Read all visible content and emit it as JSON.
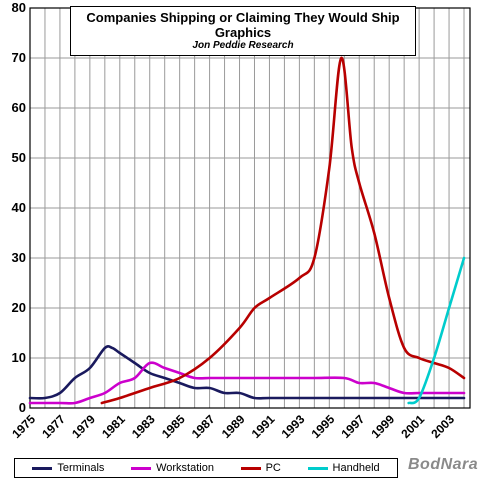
{
  "chart_data": {
    "type": "line",
    "title": "Companies  Shipping or Claiming They Would Ship Graphics",
    "subtitle": "Jon Peddie Research",
    "xlabel": "",
    "ylabel": "",
    "xlim": [
      1975,
      2004.4
    ],
    "ylim": [
      0,
      80
    ],
    "y_ticks": [
      0,
      10,
      20,
      30,
      40,
      50,
      60,
      70,
      80
    ],
    "x_tick_labels": [
      "1975",
      "1977",
      "1979",
      "1981",
      "1983",
      "1985",
      "1987",
      "1989",
      "1991",
      "1993",
      "1995",
      "1997",
      "1999",
      "2001",
      "2003"
    ],
    "grid": true,
    "legend_position": "bottom",
    "series": [
      {
        "name": "Terminals",
        "color": "#1a1a5e",
        "x": [
          1975,
          1976,
          1977,
          1978,
          1979,
          1980,
          1980.5,
          1981,
          1982,
          1983,
          1984,
          1985,
          1986,
          1987,
          1988,
          1989,
          1990,
          1991,
          1993,
          1995,
          1997,
          1999,
          2001,
          2003,
          2004
        ],
        "y": [
          2,
          2,
          3,
          6,
          8,
          12,
          12,
          11,
          9,
          7,
          6,
          5,
          4,
          4,
          3,
          3,
          2,
          2,
          2,
          2,
          2,
          2,
          2,
          2,
          2
        ]
      },
      {
        "name": "Workstation",
        "color": "#cc00cc",
        "x": [
          1975,
          1977,
          1978,
          1979,
          1980,
          1981,
          1982,
          1983,
          1984,
          1985,
          1986,
          1987,
          1988,
          1990,
          1992,
          1994,
          1996,
          1997,
          1998,
          1999,
          2000,
          2001,
          2002,
          2003,
          2004
        ],
        "y": [
          1,
          1,
          1,
          2,
          3,
          5,
          6,
          9,
          8,
          7,
          6,
          6,
          6,
          6,
          6,
          6,
          6,
          5,
          5,
          4,
          3,
          3,
          3,
          3,
          3
        ]
      },
      {
        "name": "PC",
        "color": "#b80000",
        "x": [
          1979.8,
          1981,
          1983,
          1985,
          1987,
          1989,
          1990,
          1991,
          1993,
          1994,
          1995,
          1995.8,
          1996.5,
          1997,
          1998,
          1999,
          2000,
          2001,
          2002,
          2003,
          2004
        ],
        "y": [
          1,
          2,
          4,
          6,
          10,
          16,
          20,
          22,
          26,
          30,
          48,
          70,
          52,
          45,
          35,
          22,
          12,
          10,
          9,
          8,
          6
        ]
      },
      {
        "name": "Handheld",
        "color": "#00cccc",
        "x": [
          2000.3,
          2001,
          2002,
          2003,
          2004
        ],
        "y": [
          1,
          2,
          10,
          20,
          30
        ]
      }
    ]
  },
  "watermark": "BodNara"
}
